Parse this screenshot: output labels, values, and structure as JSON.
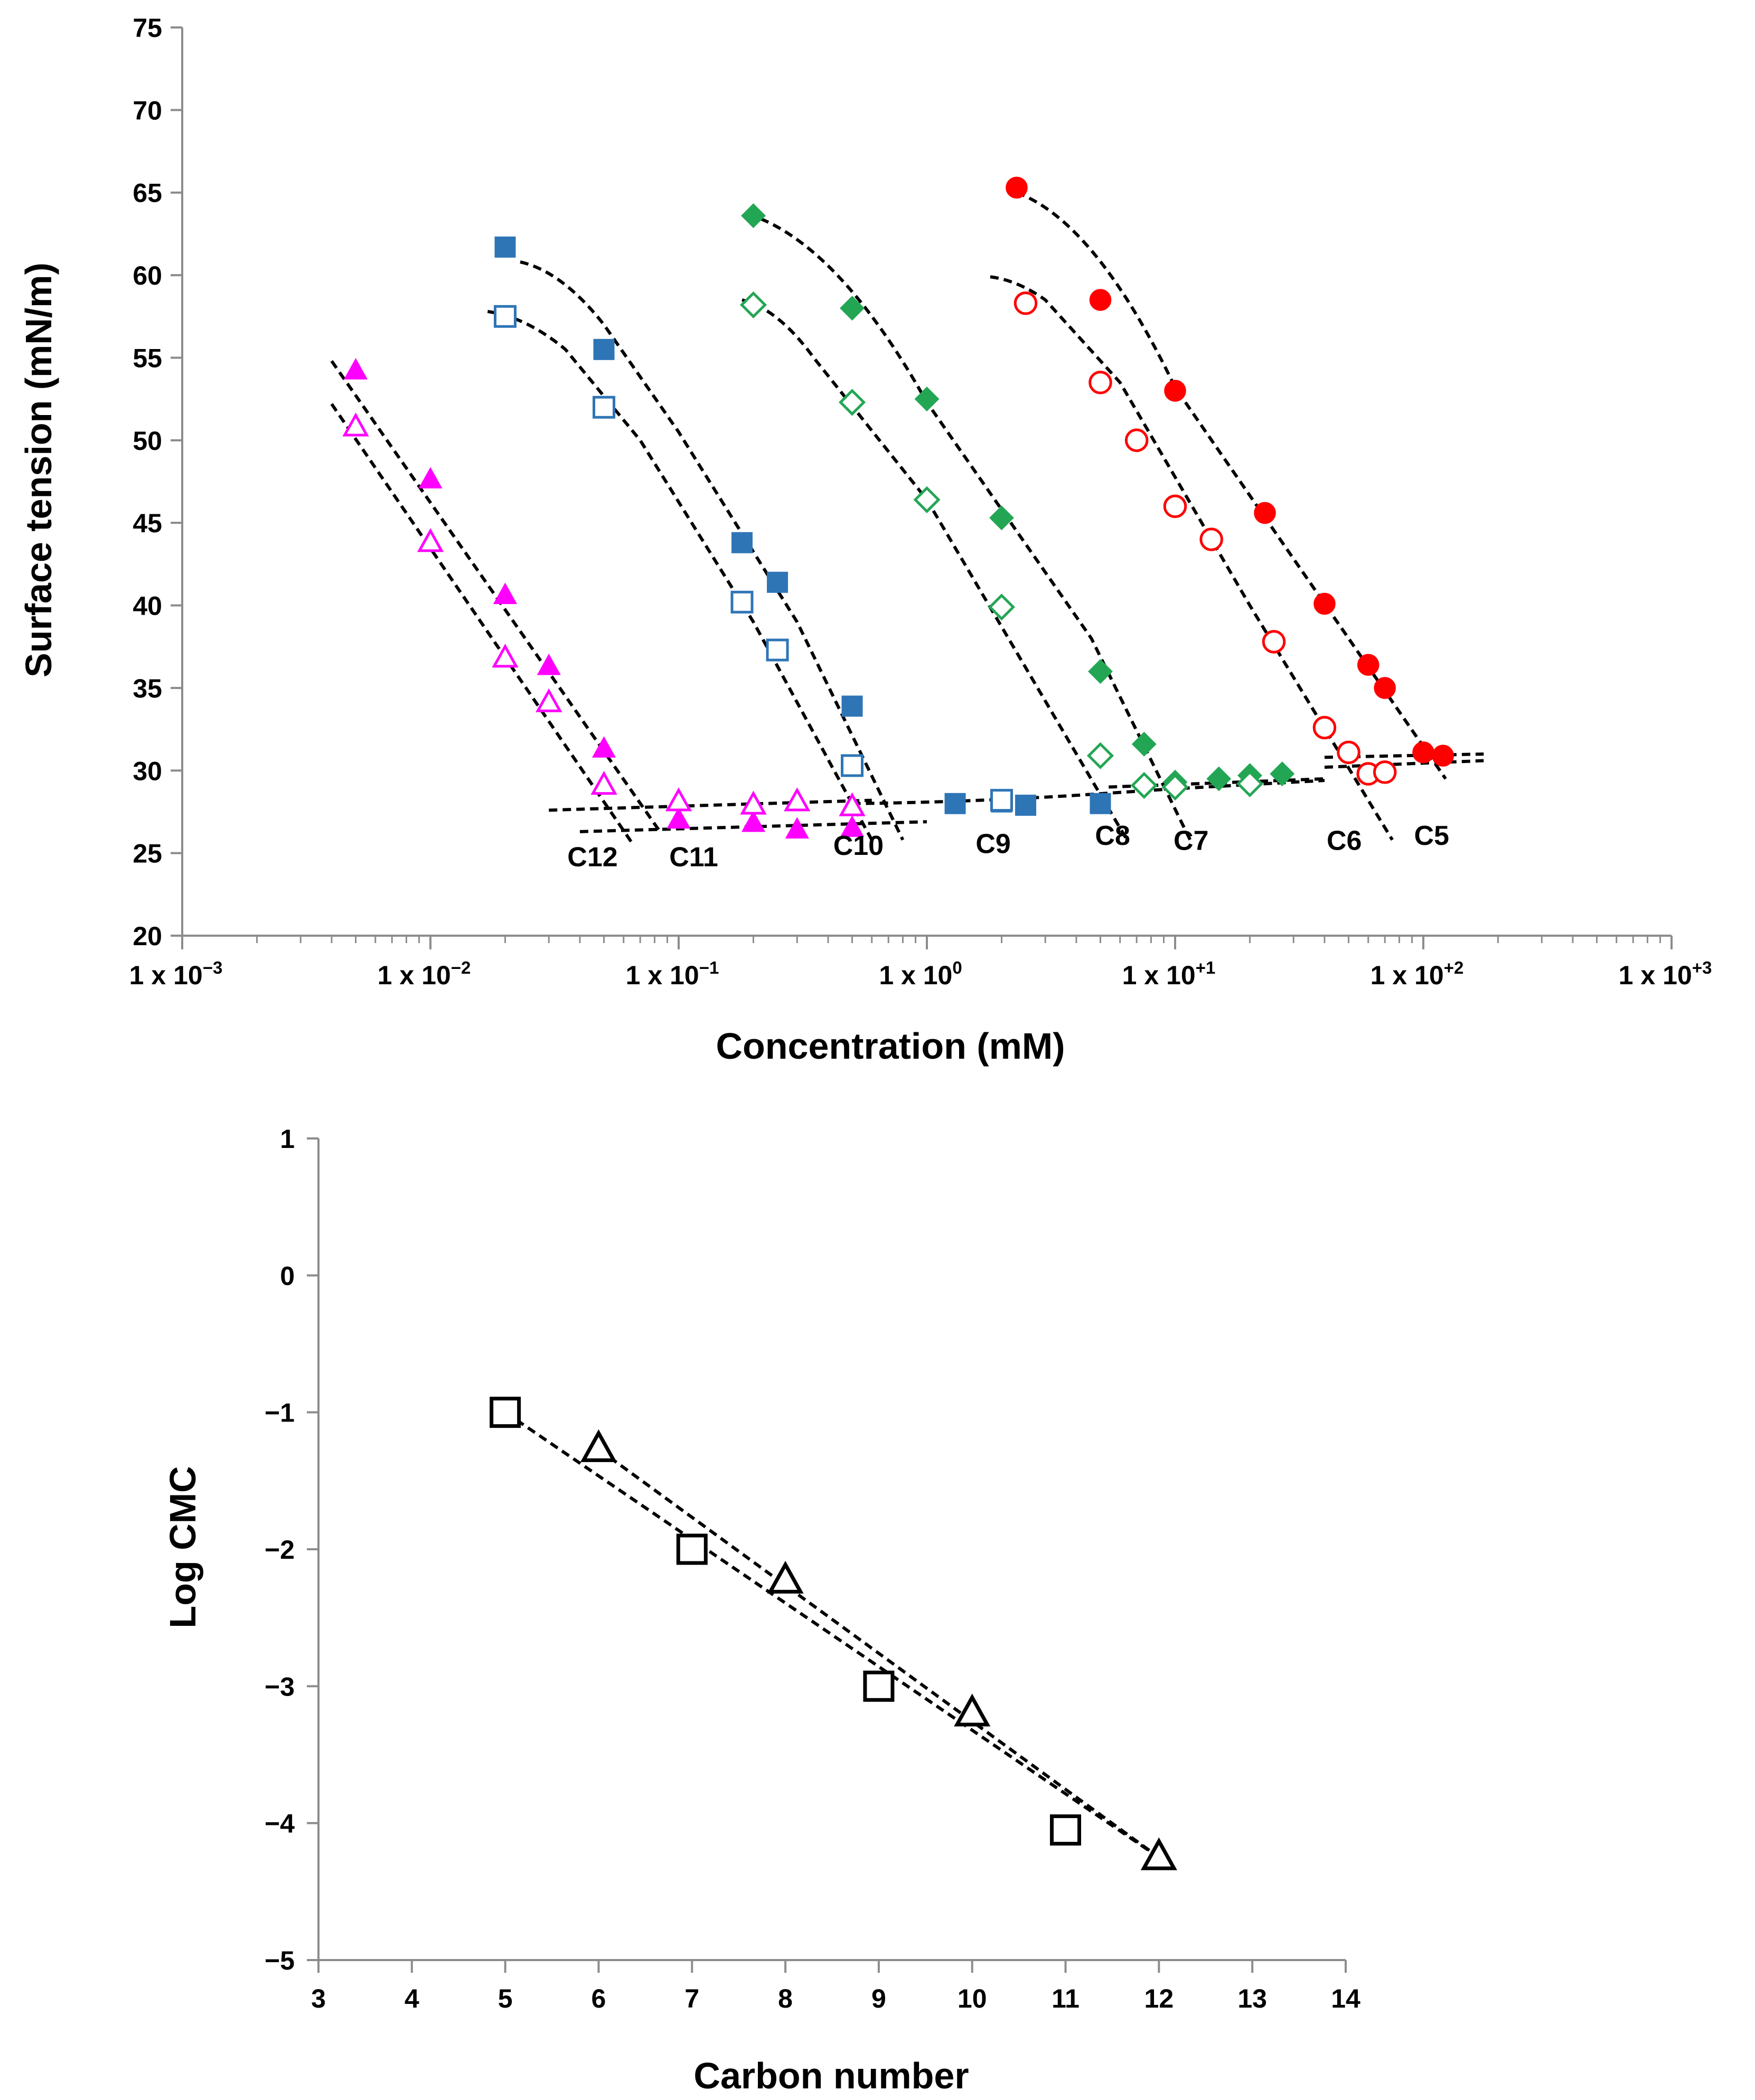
{
  "chart_data": [
    {
      "type": "scatter",
      "xscale": "log",
      "xlabel": "Concentration (mM)",
      "ylabel": "Surface tension (mN/m)",
      "xlim": [
        0.001,
        1000
      ],
      "ylim": [
        20,
        75
      ],
      "xticks": [
        {
          "base": "1 x 10",
          "exp": "−3"
        },
        {
          "base": "1 x 10",
          "exp": "−2"
        },
        {
          "base": "1 x 10",
          "exp": "−1"
        },
        {
          "base": "1 x 10",
          "exp": "0"
        },
        {
          "base": "1 x 10",
          "exp": "+1"
        },
        {
          "base": "1 x 10",
          "exp": "+2"
        },
        {
          "base": "1 x 10",
          "exp": "+3"
        }
      ],
      "yticks": [
        "20",
        "25",
        "30",
        "35",
        "40",
        "45",
        "50",
        "55",
        "60",
        "65",
        "70",
        "75"
      ],
      "series": [
        {
          "name": "C12 filled",
          "marker": "triangle",
          "filled": true,
          "color": "#FF00FF",
          "x": [
            0.005,
            0.01,
            0.02,
            0.03,
            0.05,
            0.1,
            0.2,
            0.3,
            0.5
          ],
          "y": [
            54.2,
            47.6,
            40.6,
            36.3,
            31.3,
            27.0,
            26.8,
            26.4,
            26.5
          ]
        },
        {
          "name": "C12 open",
          "marker": "triangle",
          "filled": false,
          "color": "#FF00FF",
          "x": [
            0.005,
            0.01,
            0.02,
            0.03,
            0.05,
            0.1,
            0.2,
            0.3,
            0.5
          ],
          "y": [
            50.8,
            43.8,
            36.8,
            34.1,
            29.1,
            28.1,
            27.9,
            28.1,
            27.8
          ]
        },
        {
          "name": "C10 filled",
          "marker": "square",
          "filled": true,
          "color": "#2E75B6",
          "x": [
            0.02,
            0.05,
            0.18,
            0.25,
            0.5,
            1.3,
            2,
            2.5,
            5
          ],
          "y": [
            61.7,
            55.5,
            43.8,
            41.4,
            33.9,
            28.0,
            28.1,
            27.9,
            28.0
          ]
        },
        {
          "name": "C10 open",
          "marker": "square",
          "filled": false,
          "color": "#2E75B6",
          "x": [
            0.02,
            0.05,
            0.18,
            0.25,
            0.5,
            2
          ],
          "y": [
            57.5,
            52.0,
            40.2,
            37.3,
            30.3,
            28.2
          ]
        },
        {
          "name": "C8 filled",
          "marker": "diamond",
          "filled": true,
          "color": "#23A654",
          "x": [
            0.2,
            0.5,
            1,
            2,
            5,
            7.5,
            10,
            15,
            20,
            27
          ],
          "y": [
            63.6,
            58.0,
            52.5,
            45.3,
            36.0,
            31.6,
            29.3,
            29.5,
            29.7,
            29.8
          ]
        },
        {
          "name": "C8 open",
          "marker": "diamond",
          "filled": false,
          "color": "#23A654",
          "x": [
            0.2,
            0.5,
            1,
            2,
            5,
            7.5,
            10,
            20
          ],
          "y": [
            58.2,
            52.3,
            46.4,
            39.9,
            30.9,
            29.1,
            29.0,
            29.2
          ]
        },
        {
          "name": "C6 filled",
          "marker": "circle",
          "filled": true,
          "color": "#FF0000",
          "x": [
            2.3,
            5,
            10,
            23,
            40,
            60,
            70,
            100,
            120
          ],
          "y": [
            65.3,
            58.5,
            53.0,
            45.6,
            40.1,
            36.4,
            35.0,
            31.1,
            30.9
          ]
        },
        {
          "name": "C6 open",
          "marker": "circle",
          "filled": false,
          "color": "#FF0000",
          "x": [
            2.5,
            5,
            7,
            10,
            14,
            25,
            40,
            50,
            60,
            70
          ],
          "y": [
            58.3,
            53.5,
            50.0,
            46.0,
            44.0,
            37.8,
            32.6,
            31.1,
            29.8,
            29.9
          ]
        }
      ],
      "fit_lines": [
        {
          "x": [
            0.004,
            0.085
          ],
          "y": [
            54.8,
            26.2
          ]
        },
        {
          "x": [
            0.004,
            0.065
          ],
          "y": [
            52.2,
            25.6
          ]
        },
        {
          "x": [
            0.03,
            0.6
          ],
          "y": [
            27.6,
            28.2
          ]
        },
        {
          "x": [
            0.04,
            1.0
          ],
          "y": [
            26.3,
            26.9
          ]
        },
        {
          "x": [
            0.023,
            0.05,
            0.1,
            0.3,
            0.8
          ],
          "y": [
            60.8,
            57.0,
            50.5,
            39.0,
            25.8
          ]
        },
        {
          "x": [
            0.017,
            0.035,
            0.07,
            0.2,
            0.6
          ],
          "y": [
            57.8,
            55.5,
            50.0,
            39.0,
            25.8
          ]
        },
        {
          "x": [
            0.5,
            4,
            10,
            40
          ],
          "y": [
            28.0,
            28.5,
            28.9,
            29.4
          ]
        },
        {
          "x": [
            0.19,
            1.0,
            4.6,
            11.5
          ],
          "y": [
            63.7,
            52.3,
            38.0,
            25.8
          ]
        },
        {
          "x": [
            0.18,
            0.35,
            1.0,
            6.4
          ],
          "y": [
            58.5,
            55.0,
            46.4,
            25.8
          ]
        },
        {
          "x": [
            5.4,
            40
          ],
          "y": [
            29.0,
            29.5
          ]
        },
        {
          "x": [
            2.3,
            10,
            50,
            123
          ],
          "y": [
            65.0,
            53.2,
            38.0,
            29.5
          ]
        },
        {
          "x": [
            1.8,
            3,
            6,
            20,
            75
          ],
          "y": [
            59.9,
            58.5,
            53.5,
            40.0,
            25.8
          ]
        },
        {
          "x": [
            40,
            175
          ],
          "y": [
            30.8,
            31.0
          ]
        },
        {
          "x": [
            40,
            175
          ],
          "y": [
            30.2,
            30.6
          ]
        }
      ],
      "labels": [
        {
          "text": "C12",
          "x": 0.045,
          "y": 24.2
        },
        {
          "text": "C11",
          "x": 0.115,
          "y": 24.2
        },
        {
          "text": "C10",
          "x": 0.53,
          "y": 24.9
        },
        {
          "text": "C9",
          "x": 1.85,
          "y": 25.0
        },
        {
          "text": "C8",
          "x": 5.6,
          "y": 25.5
        },
        {
          "text": "C7",
          "x": 11.6,
          "y": 25.2
        },
        {
          "text": "C6",
          "x": 48,
          "y": 25.2
        },
        {
          "text": "C5",
          "x": 108,
          "y": 25.5
        }
      ]
    },
    {
      "type": "scatter",
      "xlabel": "Carbon number",
      "ylabel": "Log CMC",
      "xlim": [
        3,
        14
      ],
      "ylim": [
        -5,
        1
      ],
      "xticks": [
        "3",
        "4",
        "5",
        "6",
        "7",
        "8",
        "9",
        "10",
        "11",
        "12",
        "13",
        "14"
      ],
      "yticks": [
        "−5",
        "−4",
        "−3",
        "−2",
        "−1",
        "0",
        "1"
      ],
      "series": [
        {
          "name": "squares",
          "marker": "square",
          "filled": false,
          "color": "#000000",
          "x": [
            5,
            7,
            9,
            11
          ],
          "y": [
            -1.0,
            -2.0,
            -3.0,
            -4.05
          ]
        },
        {
          "name": "triangles",
          "marker": "triangle",
          "filled": false,
          "color": "#000000",
          "x": [
            6,
            8,
            10,
            12
          ],
          "y": [
            -1.27,
            -2.23,
            -3.2,
            -4.25
          ]
        }
      ],
      "fit_lines": [
        {
          "x": [
            5,
            12
          ],
          "y": [
            -1.0,
            -4.25
          ]
        },
        {
          "x": [
            6,
            12
          ],
          "y": [
            -1.27,
            -4.25
          ]
        }
      ]
    }
  ]
}
